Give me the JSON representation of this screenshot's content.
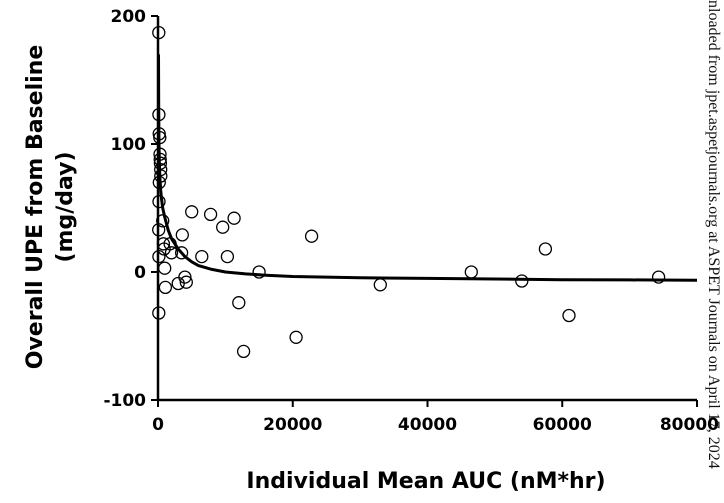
{
  "chart_data": {
    "type": "scatter",
    "title": "",
    "xlabel": "Individual Mean AUC (nM*hr)",
    "ylabel_lines": [
      "Overall UPE from  Baseline",
      "(mg/day)"
    ],
    "xlim": [
      0,
      80000
    ],
    "ylim": [
      -100,
      200
    ],
    "x_ticks": [
      0,
      20000,
      40000,
      60000,
      80000
    ],
    "y_ticks": [
      -100,
      0,
      100,
      200
    ],
    "x_tick_labels": [
      "0",
      "20000",
      "40000",
      "60000",
      "80000"
    ],
    "y_tick_labels": [
      "-100",
      "0",
      "100",
      "200"
    ],
    "grid": false,
    "legend": "none",
    "marker": "open-circle",
    "points": [
      [
        120,
        187
      ],
      [
        140,
        123
      ],
      [
        180,
        108
      ],
      [
        260,
        105
      ],
      [
        300,
        92
      ],
      [
        330,
        88
      ],
      [
        360,
        85
      ],
      [
        400,
        80
      ],
      [
        420,
        75
      ],
      [
        200,
        70
      ],
      [
        150,
        55
      ],
      [
        100,
        33
      ],
      [
        130,
        12
      ],
      [
        120,
        -32
      ],
      [
        700,
        40
      ],
      [
        800,
        22
      ],
      [
        900,
        18
      ],
      [
        1000,
        3
      ],
      [
        1100,
        -12
      ],
      [
        1800,
        22
      ],
      [
        2000,
        15
      ],
      [
        3000,
        -9
      ],
      [
        3500,
        15
      ],
      [
        3600,
        29
      ],
      [
        4000,
        -4
      ],
      [
        4200,
        -8
      ],
      [
        5000,
        47
      ],
      [
        6500,
        12
      ],
      [
        7800,
        45
      ],
      [
        9600,
        35
      ],
      [
        10300,
        12
      ],
      [
        11300,
        42
      ],
      [
        12000,
        -24
      ],
      [
        12700,
        -62
      ],
      [
        15000,
        0
      ],
      [
        20500,
        -51
      ],
      [
        22800,
        28
      ],
      [
        33000,
        -10
      ],
      [
        46500,
        0
      ],
      [
        54000,
        -7
      ],
      [
        57500,
        18
      ],
      [
        61000,
        -34
      ],
      [
        74300,
        -4
      ]
    ],
    "fit_curve": {
      "x": [
        80,
        100,
        150,
        200,
        300,
        400,
        500,
        700,
        1000,
        1500,
        2000,
        3000,
        4000,
        5000,
        6000,
        8000,
        10000,
        13000,
        16000,
        20000,
        25000,
        30000,
        40000,
        50000,
        60000,
        70000,
        80000
      ],
      "y": [
        170,
        130,
        100,
        86,
        72,
        64,
        58,
        50,
        43,
        33,
        26,
        18,
        12,
        8,
        5,
        2,
        0,
        -1.5,
        -2.5,
        -3.5,
        -4,
        -4.5,
        -5,
        -5.5,
        -6,
        -6.2,
        -6.5
      ]
    }
  },
  "side_note": "nloaded from jpet.aspetjournals.org at ASPET Journals on April 17, 2024"
}
